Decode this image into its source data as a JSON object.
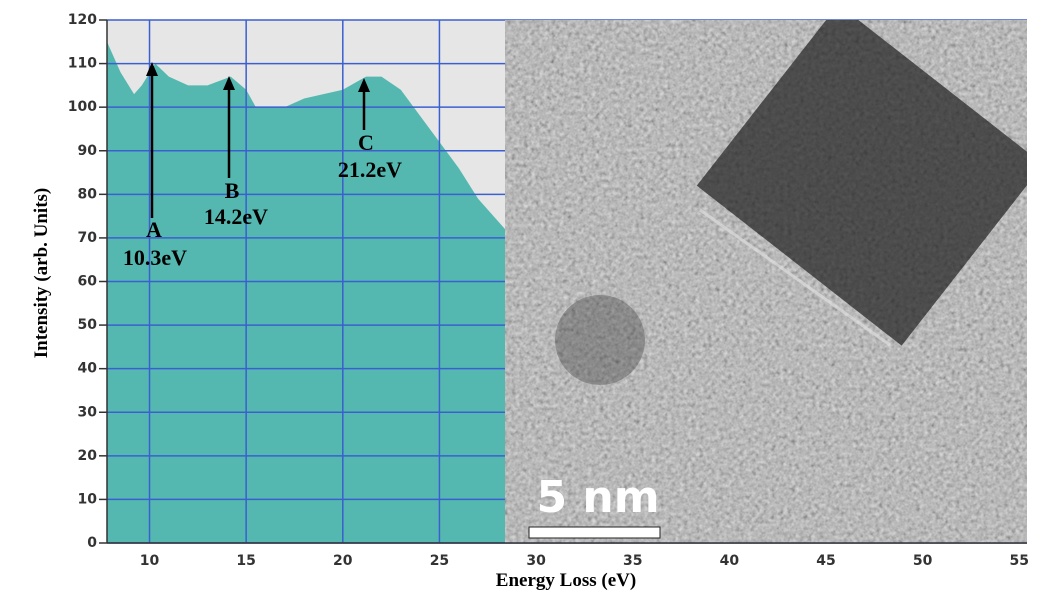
{
  "chart_data": {
    "type": "area",
    "x_label": "Energy Loss (eV)",
    "y_label": "Intensity (arb. Units)",
    "x": [
      7.8,
      8.5,
      9.2,
      9.6,
      10.3,
      11,
      12,
      13,
      14.2,
      15,
      15.5,
      17,
      18,
      20,
      21.2,
      22,
      23,
      24,
      25,
      26,
      27,
      28.4
    ],
    "values": [
      115,
      108,
      103,
      105,
      110,
      107,
      105,
      105,
      107,
      104,
      100,
      100,
      102,
      104,
      107,
      107,
      104,
      98,
      92,
      86,
      79,
      72
    ],
    "color": "#55b8b0",
    "xlim": [
      7.8,
      55.4
    ],
    "ylim": [
      0,
      120
    ],
    "xticks": [
      10,
      15,
      20,
      25,
      30,
      35,
      40,
      45,
      50,
      55
    ],
    "yticks": [
      0,
      10,
      20,
      30,
      40,
      50,
      60,
      70,
      80,
      90,
      100,
      110,
      120
    ],
    "grid": true,
    "annotations": [
      "A",
      "10.3eV",
      "B",
      "14.2eV",
      "C",
      "21.2eV"
    ],
    "scale_bar": "5 nm"
  }
}
